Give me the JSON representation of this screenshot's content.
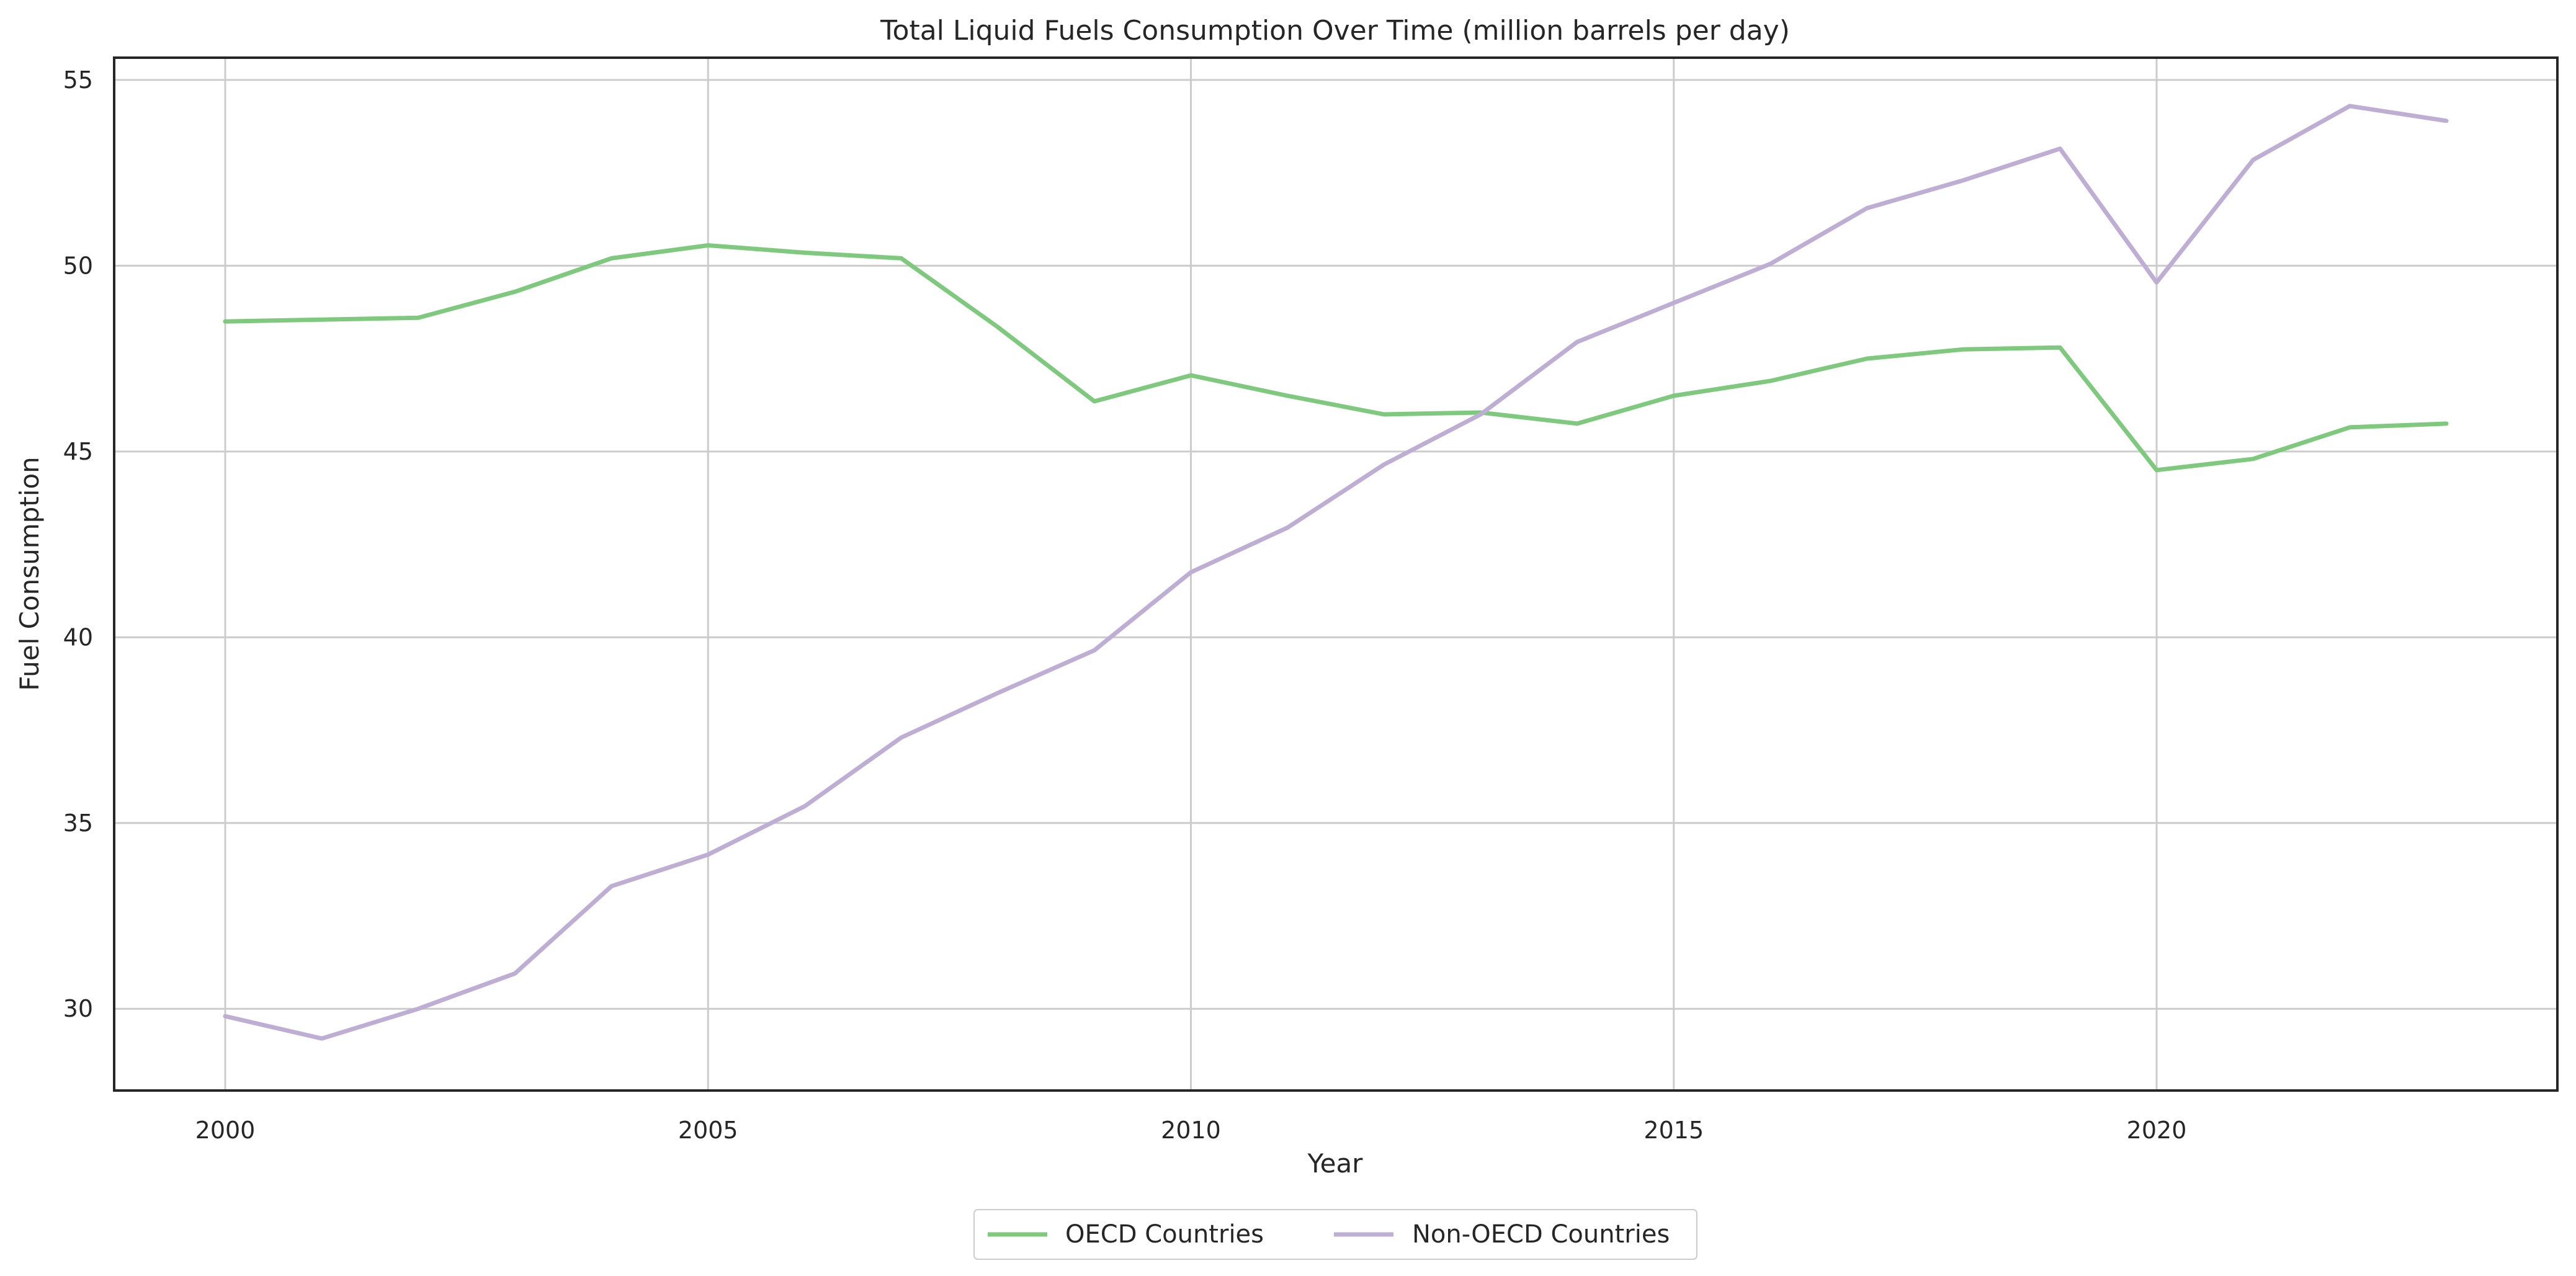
{
  "chart_data": {
    "type": "line",
    "title": "Total Liquid Fuels Consumption Over Time (million barrels per day)",
    "xlabel": "Year",
    "ylabel": "Fuel Consumption",
    "x": [
      2000,
      2001,
      2002,
      2003,
      2004,
      2005,
      2006,
      2007,
      2008,
      2009,
      2010,
      2011,
      2012,
      2013,
      2014,
      2015,
      2016,
      2017,
      2018,
      2019,
      2020,
      2021,
      2022,
      2023
    ],
    "xlim": [
      1998.85,
      2024.15
    ],
    "ylim": [
      27.8,
      55.6
    ],
    "xticks": [
      2000,
      2005,
      2010,
      2015,
      2020
    ],
    "yticks": [
      30,
      35,
      40,
      45,
      50,
      55
    ],
    "grid": true,
    "legend_placement": "bottom-center",
    "series": [
      {
        "name": "OECD Countries",
        "color": "#7fc97f",
        "values": [
          48.5,
          48.55,
          48.6,
          49.3,
          50.2,
          50.55,
          50.35,
          50.2,
          48.35,
          46.35,
          47.05,
          46.5,
          46.0,
          46.05,
          45.75,
          46.5,
          46.9,
          47.5,
          47.75,
          47.8,
          44.5,
          44.8,
          45.65,
          45.75
        ]
      },
      {
        "name": "Non-OECD Countries",
        "color": "#beaed4",
        "values": [
          29.8,
          29.2,
          30.0,
          30.95,
          33.3,
          34.15,
          35.45,
          37.3,
          38.5,
          39.65,
          41.75,
          42.95,
          44.65,
          46.0,
          47.95,
          49.0,
          50.05,
          51.55,
          52.3,
          53.15,
          49.55,
          52.85,
          54.3,
          53.9
        ]
      }
    ]
  }
}
